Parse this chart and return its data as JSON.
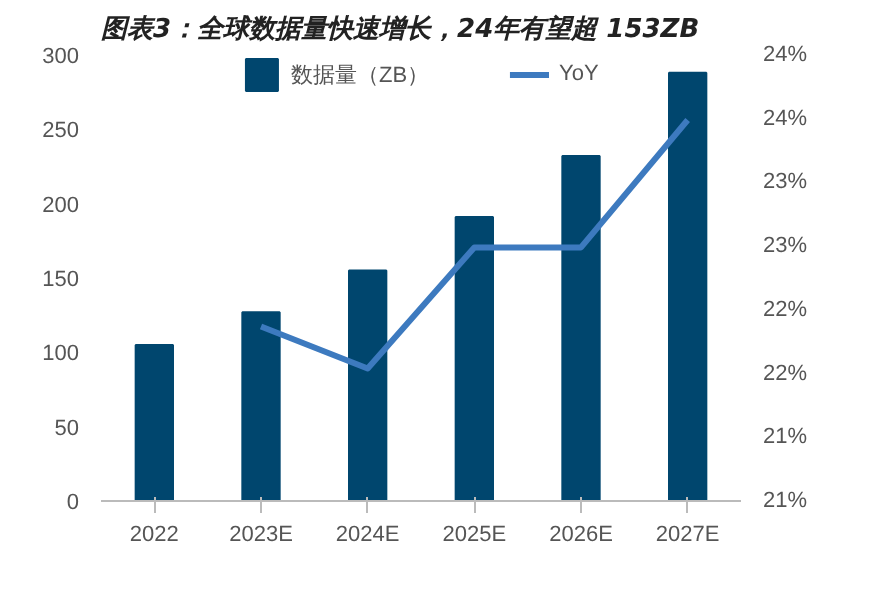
{
  "chart_data": {
    "type": "bar",
    "title": "图表3：全球数据量快速增长，24年有望超 153ZB",
    "categories": [
      "2022",
      "2023E",
      "2024E",
      "2025E",
      "2026E",
      "2027E"
    ],
    "series": [
      {
        "name": "数据量（ZB）",
        "color": "#00466e",
        "values": [
          105,
          127,
          155,
          191,
          232,
          288
        ]
      },
      {
        "name": "YoY",
        "type": "line",
        "axis": "y2",
        "color": "#3d7abf",
        "values": [
          null,
          22.17,
          21.84,
          22.79,
          22.79,
          23.79
        ]
      }
    ],
    "ylim": [
      0,
      300
    ],
    "yticks": [
      0,
      50,
      100,
      150,
      200,
      250,
      300
    ],
    "y2lim": [
      20.8,
      24.3
    ],
    "y2ticks": [
      {
        "value": 20.8,
        "label": "21%"
      },
      {
        "value": 21.3,
        "label": "21%"
      },
      {
        "value": 21.8,
        "label": "22%"
      },
      {
        "value": 22.3,
        "label": "22%"
      },
      {
        "value": 22.8,
        "label": "23%"
      },
      {
        "value": 23.3,
        "label": "23%"
      },
      {
        "value": 23.8,
        "label": "24%"
      },
      {
        "value": 24.3,
        "label": "24%"
      }
    ],
    "grid": false,
    "legend": "top"
  }
}
